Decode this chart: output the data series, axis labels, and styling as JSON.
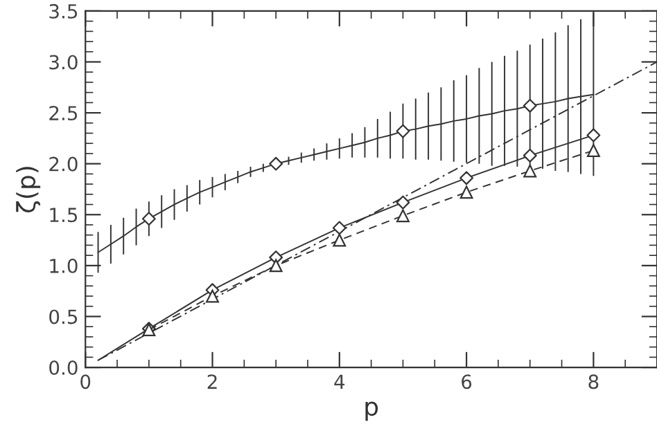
{
  "chart_data": {
    "type": "line",
    "xlabel": "p",
    "ylabel": "ζ(p)",
    "xlim": [
      0,
      9
    ],
    "ylim": [
      0,
      3.5
    ],
    "xticks": [
      0,
      2,
      4,
      6,
      8
    ],
    "yticks": [
      {
        "value": 0,
        "label": "0.0"
      },
      {
        "value": 0.5,
        "label": "0.5"
      },
      {
        "value": 1,
        "label": "1.0"
      },
      {
        "value": 1.5,
        "label": "1.5"
      },
      {
        "value": 2,
        "label": "2.0"
      },
      {
        "value": 2.5,
        "label": "2.5"
      },
      {
        "value": 3,
        "label": "3.0"
      },
      {
        "value": 3.5,
        "label": "3.5"
      }
    ],
    "grid": false,
    "series": [
      {
        "color": "#333333",
        "line_style": "solid",
        "marker": "none",
        "x": [
          0.2,
          0.4,
          0.6,
          0.8,
          1.0,
          1.2,
          1.4,
          1.6,
          1.8,
          2.0,
          2.2,
          2.4,
          2.6,
          2.8,
          3.0,
          3.2,
          3.4,
          3.6,
          3.8,
          4.0,
          4.2,
          4.4,
          4.6,
          4.8,
          5.0,
          5.2,
          5.4,
          5.6,
          5.8,
          6.0,
          6.2,
          6.4,
          6.6,
          6.8,
          7.0,
          7.2,
          7.4,
          7.6,
          7.8,
          8.0
        ],
        "values": [
          1.13,
          1.21,
          1.29,
          1.38,
          1.46,
          1.53,
          1.6,
          1.66,
          1.72,
          1.77,
          1.82,
          1.87,
          1.92,
          1.96,
          2.0,
          2.03,
          2.06,
          2.09,
          2.12,
          2.15,
          2.18,
          2.21,
          2.25,
          2.28,
          2.32,
          2.34,
          2.37,
          2.39,
          2.42,
          2.44,
          2.47,
          2.49,
          2.52,
          2.54,
          2.57,
          2.59,
          2.61,
          2.64,
          2.66,
          2.68
        ],
        "errors": [
          0.2,
          0.19,
          0.18,
          0.18,
          0.17,
          0.16,
          0.15,
          0.13,
          0.12,
          0.1,
          0.08,
          0.06,
          0.05,
          0.04,
          0.03,
          0.04,
          0.05,
          0.06,
          0.08,
          0.1,
          0.12,
          0.15,
          0.19,
          0.23,
          0.27,
          0.3,
          0.33,
          0.36,
          0.4,
          0.43,
          0.47,
          0.51,
          0.54,
          0.57,
          0.6,
          0.64,
          0.68,
          0.72,
          0.76,
          0.8
        ]
      },
      {
        "type": "scatter",
        "color": "#333333",
        "marker": "diamond",
        "x": [
          1,
          3,
          5,
          7
        ],
        "values": [
          1.46,
          2.0,
          2.32,
          2.57
        ]
      },
      {
        "color": "#333333",
        "line_style": "solid",
        "marker": "none",
        "x": [
          0.2,
          1,
          2,
          3,
          4,
          5,
          6,
          7,
          8
        ],
        "values": [
          0.07,
          0.38,
          0.76,
          1.08,
          1.37,
          1.62,
          1.86,
          2.08,
          2.28
        ]
      },
      {
        "type": "scatter",
        "color": "#333333",
        "marker": "diamond",
        "x": [
          1,
          2,
          3,
          4,
          5,
          6,
          7,
          8
        ],
        "values": [
          0.38,
          0.76,
          1.08,
          1.37,
          1.62,
          1.86,
          2.08,
          2.28
        ]
      },
      {
        "color": "#333333",
        "line_style": "dashed",
        "marker": "triangle",
        "x": [
          1,
          2,
          3,
          4,
          5,
          6,
          7,
          8
        ],
        "values": [
          0.37,
          0.7,
          1.0,
          1.25,
          1.49,
          1.72,
          1.93,
          2.13
        ]
      },
      {
        "color": "#333333",
        "line_style": "dashdot",
        "marker": "none",
        "x": [
          0.2,
          9
        ],
        "values": [
          0.07,
          3.0
        ]
      }
    ]
  }
}
